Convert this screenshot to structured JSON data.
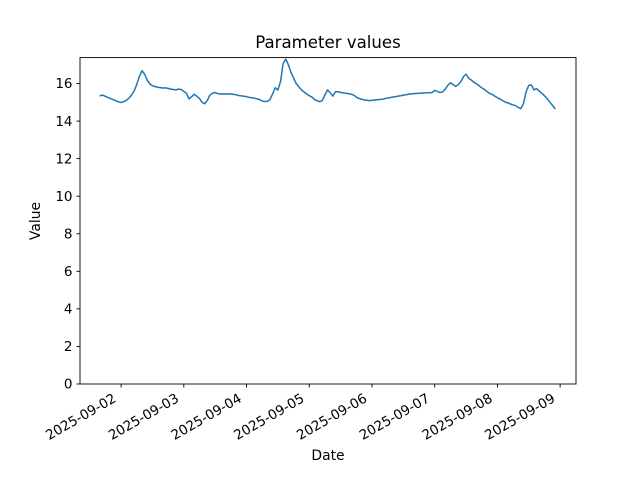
{
  "chart_data": {
    "type": "line",
    "title": "Parameter values",
    "xlabel": "Date",
    "ylabel": "Value",
    "x_tick_labels": [
      "2025-09-02",
      "2025-09-03",
      "2025-09-04",
      "2025-09-05",
      "2025-09-06",
      "2025-09-07",
      "2025-09-08",
      "2025-09-09"
    ],
    "y_ticks": [
      0,
      2,
      4,
      6,
      8,
      10,
      12,
      14,
      16
    ],
    "xlim_days": [
      -0.655,
      7.253
    ],
    "ylim": [
      0,
      17.38
    ],
    "grid": false,
    "legend": false,
    "line_color": "#1f77b4",
    "axes_color": "#000000",
    "background_color": "#ffffff",
    "series": [
      {
        "x_start_days": -0.3333,
        "x_step_days": 0.0416667,
        "values": [
          15.35,
          15.38,
          15.32,
          15.25,
          15.2,
          15.14,
          15.08,
          15.02,
          14.99,
          15.03,
          15.1,
          15.22,
          15.38,
          15.6,
          15.95,
          16.38,
          16.68,
          16.5,
          16.18,
          15.98,
          15.88,
          15.84,
          15.8,
          15.78,
          15.76,
          15.77,
          15.74,
          15.7,
          15.68,
          15.66,
          15.7,
          15.68,
          15.58,
          15.48,
          15.18,
          15.3,
          15.43,
          15.32,
          15.2,
          15.0,
          14.92,
          15.1,
          15.39,
          15.48,
          15.52,
          15.46,
          15.44,
          15.45,
          15.44,
          15.45,
          15.44,
          15.42,
          15.4,
          15.36,
          15.34,
          15.32,
          15.3,
          15.26,
          15.24,
          15.22,
          15.18,
          15.15,
          15.07,
          15.04,
          15.05,
          15.15,
          15.45,
          15.78,
          15.65,
          16.1,
          17.05,
          17.3,
          17.0,
          16.6,
          16.3,
          16.0,
          15.83,
          15.66,
          15.55,
          15.45,
          15.35,
          15.28,
          15.15,
          15.08,
          15.03,
          15.09,
          15.39,
          15.66,
          15.51,
          15.33,
          15.56,
          15.56,
          15.53,
          15.5,
          15.48,
          15.46,
          15.43,
          15.38,
          15.28,
          15.2,
          15.17,
          15.13,
          15.11,
          15.09,
          15.1,
          15.12,
          15.14,
          15.15,
          15.16,
          15.2,
          15.22,
          15.25,
          15.28,
          15.3,
          15.33,
          15.35,
          15.38,
          15.4,
          15.43,
          15.45,
          15.46,
          15.47,
          15.48,
          15.49,
          15.5,
          15.51,
          15.51,
          15.52,
          15.64,
          15.58,
          15.52,
          15.54,
          15.7,
          15.9,
          16.04,
          15.95,
          15.85,
          15.93,
          16.1,
          16.36,
          16.5,
          16.28,
          16.18,
          16.07,
          15.98,
          15.88,
          15.77,
          15.69,
          15.57,
          15.48,
          15.42,
          15.33,
          15.24,
          15.18,
          15.09,
          15.01,
          14.97,
          14.91,
          14.86,
          14.82,
          14.72,
          14.66,
          14.95,
          15.57,
          15.9,
          15.92,
          15.66,
          15.73,
          15.6,
          15.48,
          15.35,
          15.2,
          15.02,
          14.85,
          14.67
        ]
      }
    ]
  }
}
